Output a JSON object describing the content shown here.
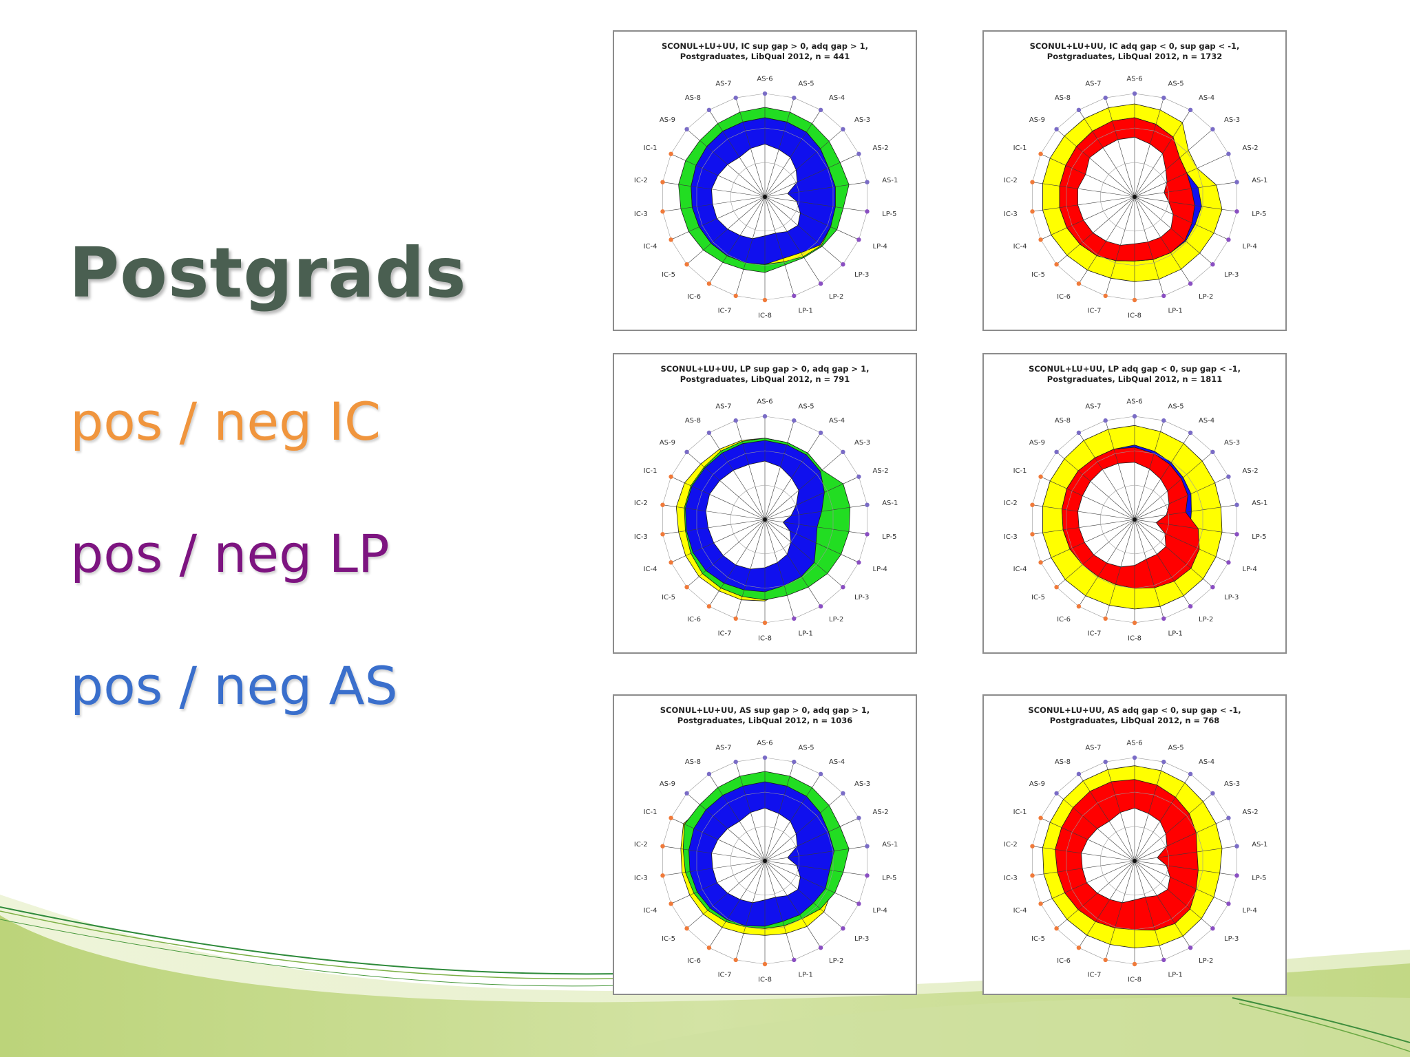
{
  "slide": {
    "title": "Postgrads",
    "bullets": [
      {
        "text": "pos / neg IC",
        "color": "#f0953d"
      },
      {
        "text": "pos / neg LP",
        "color": "#7d1480"
      },
      {
        "text": "pos / neg AS",
        "color": "#3a6fcc"
      }
    ]
  },
  "colors": {
    "ic_marker": "#f07a3a",
    "lp_marker": "#8a4fc2",
    "as_marker": "#7a6cc6",
    "green": "#22dd22",
    "blue": "#1010ee",
    "yellow": "#ffff00",
    "red": "#ff0000"
  },
  "chart_data": [
    {
      "type": "radar",
      "title_lines": [
        "SCONUL+LU+UU, IC sup gap > 0, adq gap > 1,",
        "Postgraduates, LibQual 2012, n = 441"
      ],
      "axes": [
        "AS-6",
        "AS-5",
        "AS-4",
        "AS-3",
        "AS-2",
        "AS-1",
        "LP-5",
        "LP-4",
        "LP-3",
        "LP-2",
        "LP-1",
        "IC-8",
        "IC-7",
        "IC-6",
        "IC-5",
        "IC-4",
        "IC-3",
        "IC-2",
        "IC-1",
        "AS-9",
        "AS-8",
        "AS-7"
      ],
      "scale": [
        0,
        9
      ],
      "series": [
        {
          "fill": "green",
          "values": [
            7.8,
            7.7,
            7.6,
            7.4,
            7.2,
            7.4,
            6.9,
            6.9,
            6.6,
            6.3,
            6.2,
            6.6,
            6.6,
            6.8,
            7.1,
            7.3,
            7.4,
            7.6,
            7.6,
            7.5,
            7.6,
            7.7
          ]
        },
        {
          "fill": "yellow",
          "values": [
            6.9,
            6.8,
            6.7,
            6.4,
            6.1,
            6.2,
            6.2,
            6.3,
            6.5,
            6.2,
            5.9,
            5.9,
            6.0,
            6.1,
            6.2,
            6.3,
            6.4,
            6.5,
            6.6,
            6.7,
            6.8,
            6.8
          ]
        },
        {
          "fill": "blue",
          "values": [
            6.9,
            6.8,
            6.7,
            6.4,
            6.1,
            6.2,
            6.2,
            6.3,
            6.4,
            5.8,
            5.6,
            5.9,
            6.0,
            6.1,
            6.2,
            6.3,
            6.4,
            6.5,
            6.6,
            6.7,
            6.8,
            6.8
          ]
        },
        {
          "fill": "white",
          "values": [
            4.6,
            4.3,
            4.1,
            3.6,
            3.1,
            2.0,
            2.8,
            3.4,
            3.8,
            3.6,
            3.3,
            3.4,
            3.8,
            4.0,
            4.3,
            4.6,
            4.6,
            4.7,
            4.5,
            4.3,
            4.1,
            4.4
          ]
        }
      ]
    },
    {
      "type": "radar",
      "title_lines": [
        "SCONUL+LU+UU, IC adq gap < 0, sup gap < -1,",
        "Postgraduates, LibQual 2012, n = 1732"
      ],
      "axes": [
        "AS-6",
        "AS-5",
        "AS-4",
        "AS-3",
        "AS-2",
        "AS-1",
        "LP-5",
        "LP-4",
        "LP-3",
        "LP-2",
        "LP-1",
        "IC-8",
        "IC-7",
        "IC-6",
        "IC-5",
        "IC-4",
        "IC-3",
        "IC-2",
        "IC-1",
        "AS-9",
        "AS-8",
        "AS-7"
      ],
      "scale": [
        0,
        9
      ],
      "series": [
        {
          "fill": "yellow",
          "values": [
            8.1,
            7.9,
            7.7,
            6.2,
            6.0,
            7.2,
            7.7,
            7.6,
            7.5,
            7.5,
            7.5,
            7.4,
            7.4,
            7.6,
            7.8,
            8.0,
            8.1,
            8.1,
            8.1,
            8.1,
            8.1,
            8.1
          ]
        },
        {
          "fill": "blue",
          "values": [
            6.9,
            6.6,
            6.2,
            5.2,
            5.0,
            5.6,
            5.9,
            5.8,
            5.9,
            5.8,
            5.7,
            5.6,
            5.8,
            6.1,
            6.3,
            6.5,
            6.6,
            6.6,
            6.6,
            6.7,
            6.8,
            6.9
          ]
        },
        {
          "fill": "red",
          "values": [
            6.9,
            6.6,
            6.2,
            5.2,
            5.0,
            5.0,
            5.3,
            5.5,
            5.8,
            5.8,
            5.7,
            5.6,
            5.8,
            6.1,
            6.3,
            6.5,
            6.6,
            6.6,
            6.6,
            6.7,
            6.8,
            6.9
          ]
        },
        {
          "fill": "white",
          "values": [
            5.2,
            4.8,
            4.5,
            3.6,
            3.1,
            2.6,
            3.0,
            3.7,
            4.2,
            4.2,
            4.1,
            4.1,
            4.4,
            4.6,
            4.8,
            4.9,
            5.0,
            5.0,
            4.7,
            5.2,
            5.1,
            5.2
          ]
        }
      ]
    },
    {
      "type": "radar",
      "title_lines": [
        "SCONUL+LU+UU, LP sup gap > 0, adq gap > 1,",
        "Postgraduates, LibQual 2012, n = 791"
      ],
      "axes": [
        "AS-6",
        "AS-5",
        "AS-4",
        "AS-3",
        "AS-2",
        "AS-1",
        "LP-5",
        "LP-4",
        "LP-3",
        "LP-2",
        "LP-1",
        "IC-8",
        "IC-7",
        "IC-6",
        "IC-5",
        "IC-4",
        "IC-3",
        "IC-2",
        "IC-1",
        "AS-9",
        "AS-8",
        "AS-7"
      ],
      "scale": [
        0,
        9
      ],
      "series": [
        {
          "fill": "yellow",
          "values": [
            7.1,
            7.0,
            6.9,
            6.6,
            6.4,
            6.4,
            6.5,
            6.6,
            6.6,
            6.4,
            6.4,
            7.1,
            7.3,
            7.4,
            7.6,
            7.6,
            7.6,
            7.8,
            7.7,
            7.4,
            7.3,
            7.2
          ]
        },
        {
          "fill": "green",
          "values": [
            7.1,
            7.0,
            6.9,
            6.6,
            7.5,
            7.5,
            7.4,
            7.3,
            7.2,
            7.0,
            6.9,
            7.0,
            7.0,
            7.1,
            7.2,
            7.1,
            7.0,
            7.1,
            7.1,
            7.0,
            7.1,
            7.1
          ]
        },
        {
          "fill": "blue",
          "values": [
            6.9,
            6.8,
            6.7,
            6.4,
            5.7,
            5.0,
            4.6,
            4.9,
            5.7,
            5.9,
            6.0,
            6.3,
            6.4,
            6.6,
            6.8,
            6.9,
            6.9,
            7.0,
            7.0,
            6.9,
            6.9,
            6.9
          ]
        },
        {
          "fill": "white",
          "values": [
            5.1,
            4.8,
            4.3,
            3.9,
            3.0,
            2.3,
            1.6,
            2.4,
            3.0,
            3.6,
            3.9,
            4.2,
            4.5,
            4.7,
            4.8,
            4.9,
            5.0,
            5.2,
            5.3,
            5.2,
            5.1,
            5.0
          ]
        }
      ]
    },
    {
      "type": "radar",
      "title_lines": [
        "SCONUL+LU+UU, LP adq gap < 0, sup gap < -1,",
        "Postgraduates, LibQual 2012, n = 1811"
      ],
      "axes": [
        "AS-6",
        "AS-5",
        "AS-4",
        "AS-3",
        "AS-2",
        "AS-1",
        "LP-5",
        "LP-4",
        "LP-3",
        "LP-2",
        "LP-1",
        "IC-8",
        "IC-7",
        "IC-6",
        "IC-5",
        "IC-4",
        "IC-3",
        "IC-2",
        "IC-1",
        "AS-9",
        "AS-8",
        "AS-7"
      ],
      "scale": [
        0,
        9
      ],
      "series": [
        {
          "fill": "yellow",
          "values": [
            8.2,
            8.0,
            7.9,
            7.8,
            7.7,
            7.6,
            7.7,
            7.8,
            7.9,
            7.9,
            7.9,
            7.8,
            7.8,
            7.9,
            8.0,
            8.0,
            8.1,
            8.1,
            8.1,
            8.1,
            8.2,
            8.2
          ]
        },
        {
          "fill": "blue",
          "values": [
            6.5,
            6.2,
            5.9,
            5.6,
            5.4,
            5.0,
            4.9,
            5.0,
            5.3,
            5.4,
            5.5,
            5.6,
            5.7,
            5.8,
            6.0,
            6.2,
            6.3,
            6.4,
            6.5,
            6.5,
            6.4,
            6.4
          ]
        },
        {
          "fill": "red",
          "values": [
            6.3,
            6.0,
            5.7,
            5.4,
            5.1,
            4.5,
            5.6,
            6.2,
            6.5,
            6.4,
            6.2,
            6.0,
            5.9,
            5.9,
            6.0,
            6.2,
            6.3,
            6.4,
            6.5,
            6.5,
            6.4,
            6.4
          ]
        },
        {
          "fill": "white",
          "values": [
            5.0,
            4.6,
            4.2,
            3.8,
            3.3,
            2.8,
            1.9,
            2.9,
            3.6,
            3.6,
            3.6,
            4.0,
            4.3,
            4.5,
            4.7,
            4.8,
            4.9,
            5.0,
            5.0,
            5.1,
            5.2,
            5.1
          ]
        }
      ]
    },
    {
      "type": "radar",
      "title_lines": [
        "SCONUL+LU+UU, AS sup gap > 0, adq gap > 1,",
        "Postgraduates, LibQual 2012, n = 1036"
      ],
      "axes": [
        "AS-6",
        "AS-5",
        "AS-4",
        "AS-3",
        "AS-2",
        "AS-1",
        "LP-5",
        "LP-4",
        "LP-3",
        "LP-2",
        "LP-1",
        "IC-8",
        "IC-7",
        "IC-6",
        "IC-5",
        "IC-4",
        "IC-3",
        "IC-2",
        "IC-1",
        "AS-9",
        "AS-8",
        "AS-7"
      ],
      "scale": [
        0,
        9
      ],
      "series": [
        {
          "fill": "yellow",
          "values": [
            6.9,
            6.8,
            6.7,
            6.4,
            6.1,
            6.1,
            6.2,
            6.4,
            6.8,
            6.8,
            6.6,
            6.5,
            6.6,
            6.9,
            7.1,
            7.2,
            7.3,
            7.4,
            7.8,
            7.2,
            7.0,
            6.9
          ]
        },
        {
          "fill": "green",
          "values": [
            7.8,
            7.7,
            7.6,
            7.4,
            7.2,
            7.4,
            6.9,
            6.7,
            6.4,
            6.0,
            5.9,
            5.9,
            6.0,
            6.3,
            6.6,
            6.8,
            7.0,
            7.2,
            7.7,
            7.5,
            7.6,
            7.7
          ]
        },
        {
          "fill": "blue",
          "values": [
            6.9,
            6.8,
            6.7,
            6.4,
            6.1,
            6.1,
            5.7,
            5.8,
            5.6,
            5.6,
            5.5,
            5.7,
            5.9,
            6.1,
            6.3,
            6.5,
            6.6,
            6.7,
            6.8,
            6.8,
            6.8,
            6.8
          ]
        },
        {
          "fill": "white",
          "values": [
            4.6,
            4.3,
            4.1,
            3.6,
            3.1,
            2.0,
            2.8,
            3.4,
            3.8,
            3.6,
            3.3,
            3.4,
            3.8,
            4.0,
            4.3,
            4.6,
            4.6,
            4.7,
            4.5,
            4.3,
            4.1,
            4.4
          ]
        }
      ]
    },
    {
      "type": "radar",
      "title_lines": [
        "SCONUL+LU+UU, AS adq gap < 0, sup gap < -1,",
        "Postgraduates, LibQual 2012, n = 768"
      ],
      "axes": [
        "AS-6",
        "AS-5",
        "AS-4",
        "AS-3",
        "AS-2",
        "AS-1",
        "LP-5",
        "LP-4",
        "LP-3",
        "LP-2",
        "LP-1",
        "IC-8",
        "IC-7",
        "IC-6",
        "IC-5",
        "IC-4",
        "IC-3",
        "IC-2",
        "IC-1",
        "AS-9",
        "AS-8",
        "AS-7"
      ],
      "scale": [
        0,
        9
      ],
      "series": [
        {
          "fill": "yellow",
          "values": [
            8.3,
            8.2,
            8.1,
            7.9,
            7.8,
            7.7,
            7.5,
            7.6,
            7.7,
            7.8,
            7.7,
            7.6,
            7.6,
            7.7,
            7.8,
            7.9,
            8.0,
            8.1,
            8.1,
            8.2,
            8.3,
            8.3
          ]
        },
        {
          "fill": "red",
          "values": [
            7.1,
            6.9,
            6.6,
            6.3,
            5.9,
            5.5,
            5.6,
            5.9,
            6.4,
            6.5,
            6.3,
            6.0,
            6.1,
            6.3,
            6.5,
            6.7,
            6.8,
            7.0,
            7.0,
            7.1,
            7.2,
            7.2
          ]
        },
        {
          "fill": "white",
          "values": [
            4.6,
            4.3,
            4.1,
            3.6,
            3.1,
            2.0,
            2.8,
            3.4,
            3.8,
            3.6,
            3.3,
            3.4,
            3.8,
            4.0,
            4.3,
            4.6,
            4.6,
            4.7,
            4.5,
            4.3,
            4.1,
            4.4
          ]
        }
      ]
    }
  ]
}
